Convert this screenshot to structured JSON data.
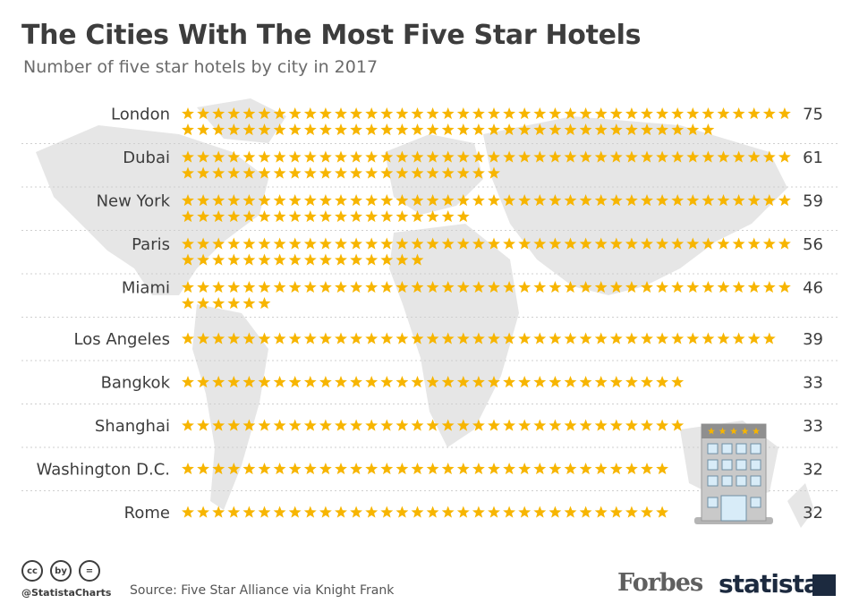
{
  "title": "The Cities With The Most Five Star Hotels",
  "subtitle": "Number of five star hotels by city in 2017",
  "chart_data": {
    "type": "bar",
    "categories": [
      "London",
      "Dubai",
      "New York",
      "Paris",
      "Miami",
      "Los Angeles",
      "Bangkok",
      "Shanghai",
      "Washington D.C.",
      "Rome"
    ],
    "values": [
      75,
      61,
      59,
      56,
      46,
      39,
      33,
      33,
      32,
      32
    ],
    "mark": "star-icon",
    "star_color": "#f7b500"
  },
  "footer": {
    "handle": "@StatistaCharts",
    "source": "Source: Five Star Alliance via Knight Frank",
    "brand_left": "Forbes",
    "brand_right": "statista",
    "cc_icons": [
      "cc",
      "by",
      "="
    ]
  },
  "colors": {
    "title": "#3d3d3d",
    "map": "#e4e4e4",
    "divider": "#cfcfcf"
  }
}
